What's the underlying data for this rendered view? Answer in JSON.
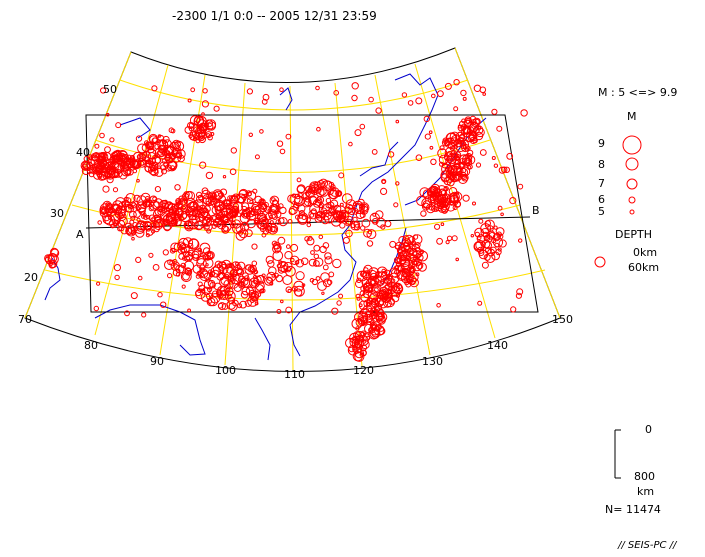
{
  "title": "-2300 1/1 0:0 -- 2005 12/31 23:59",
  "lat_labels": [
    "50",
    "40",
    "30",
    "20"
  ],
  "lon_labels": [
    "70",
    "80",
    "90",
    "100",
    "110",
    "120",
    "130",
    "140",
    "150"
  ],
  "section_labels": {
    "start": "A",
    "end": "B"
  },
  "legend": {
    "magnitude_range": "M : 5 <=> 9.9",
    "magnitude_header": "M",
    "magnitudes": [
      "9",
      "8",
      "7",
      "6",
      "5"
    ],
    "depth_header": "DEPTH",
    "depth_values": [
      "0km",
      "60km"
    ]
  },
  "depth_scale": {
    "top": "0",
    "bottom": "800",
    "unit": "km"
  },
  "count": "N= 11474",
  "footer": "// SEIS-PC //",
  "colors": {
    "grid": "#ffe000",
    "coast": "#0000cc",
    "quake": "#ff0000",
    "frame": "#000000"
  }
}
